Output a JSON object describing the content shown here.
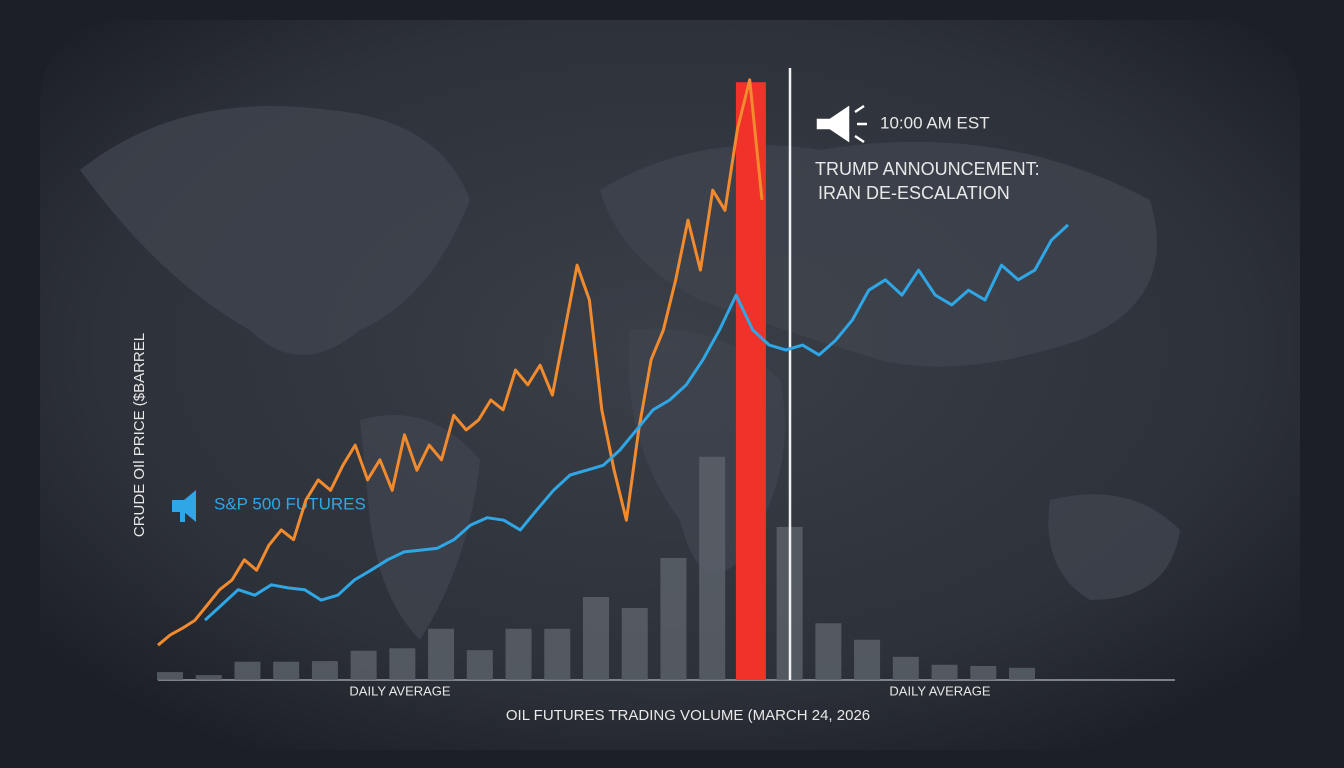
{
  "chart_data": {
    "type": "combo",
    "title": "OIL FUTURES TRADING VOLUME (MARCH 24, 2026",
    "ylabel": "CRUDE OIl PRICE ($BARREL",
    "ylim": [
      0,
      100
    ],
    "bars": {
      "color": "#5b6068",
      "colors": [
        "#5b6068",
        "#5b6068",
        "#5b6068",
        "#5b6068",
        "#5b6068",
        "#5b6068",
        "#5b6068",
        "#5b6068",
        "#5b6068",
        "#5b6068",
        "#5b6068",
        "#5b6068",
        "#5b6068",
        "#5b6068",
        "#5b6068",
        "#f0322a",
        "#5b6068",
        "#5b6068",
        "#5b6068",
        "#5b6068",
        "#5b6068",
        "#5b6068",
        "#5b6068"
      ],
      "categories": [
        null,
        null,
        null,
        null,
        null,
        null,
        null,
        null,
        null,
        null,
        null,
        null,
        null,
        null,
        null,
        null,
        null,
        null,
        null,
        null,
        null,
        null,
        null
      ],
      "values": [
        1.3,
        0.8,
        3.0,
        3.0,
        3.1,
        4.8,
        5.2,
        8.4,
        4.9,
        8.4,
        8.4,
        13.6,
        11.8,
        20,
        36.6,
        98,
        25.1,
        9.3,
        6.6,
        3.8,
        2.5,
        2.3,
        2.0
      ]
    },
    "series": [
      {
        "color": "#f28a2e",
        "values": [
          5.7,
          7.4,
          8.5,
          9.8,
          12.3,
          14.8,
          16.4,
          19.7,
          18.0,
          22.1,
          24.6,
          23.0,
          29.5,
          32.8,
          31.1,
          35.2,
          38.5,
          32.8,
          36.1,
          31.1,
          40.2,
          34.4,
          38.5,
          36.1,
          43.4,
          41.0,
          42.6,
          45.9,
          44.3,
          50.8,
          48.4,
          51.6,
          46.7,
          57.4,
          68.0,
          62.3,
          44.3,
          34.4,
          26.2,
          41.0,
          52.5,
          57.4,
          65.6,
          75.4,
          67.2,
          80.3,
          77.0,
          90.2,
          98.4,
          78.7
        ]
      },
      {
        "name": "S&P 500 FUTURES",
        "color": "#2fa6e6",
        "values": [
          9.8,
          12.3,
          14.8,
          13.9,
          15.6,
          15.1,
          14.8,
          13.1,
          13.9,
          16.4,
          18.0,
          19.7,
          21.0,
          21.3,
          21.6,
          23.0,
          25.4,
          26.6,
          26.2,
          24.6,
          27.9,
          31.1,
          33.6,
          34.4,
          35.2,
          37.7,
          41.0,
          44.3,
          45.9,
          48.4,
          52.5,
          57.4,
          63.1,
          57.4,
          54.9,
          54.1,
          54.9,
          53.3,
          55.7,
          59.0,
          63.9,
          65.6,
          63.1,
          67.2,
          63.1,
          61.5,
          63.9,
          62.3,
          68.0,
          65.6,
          67.2,
          72.1,
          74.6
        ]
      }
    ],
    "annotations": [
      "10:00 AM EST",
      "TRUMP ANNOUNCEMENT:",
      "IRAN DE-ESCALATION",
      "DAILY AVERAGE",
      "DAILY AVERAGE"
    ]
  }
}
